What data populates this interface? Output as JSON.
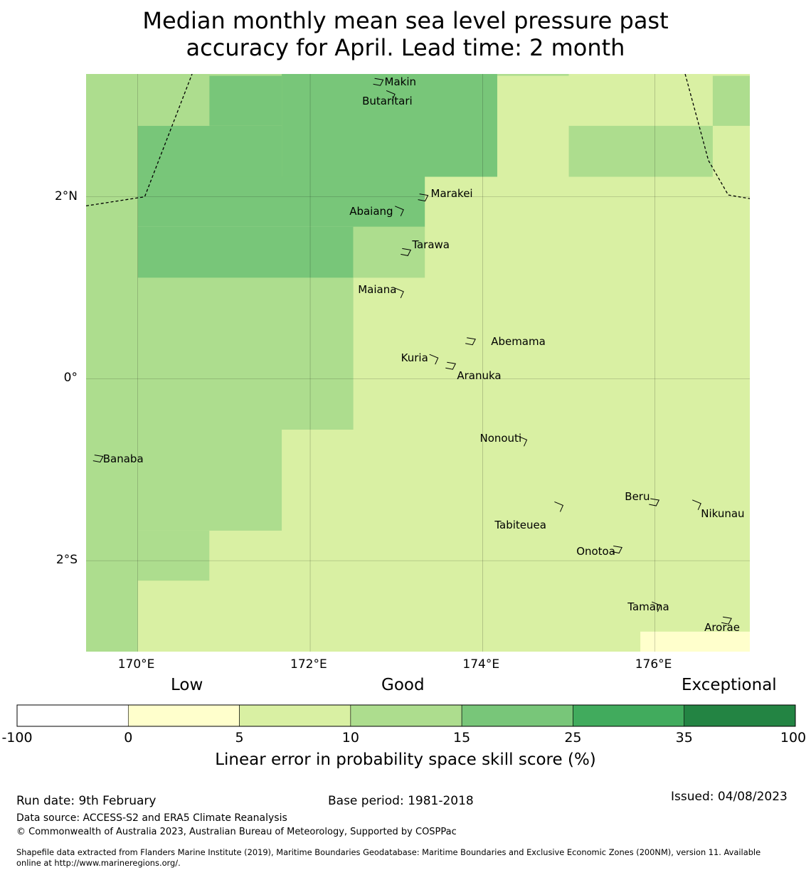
{
  "title": {
    "line1": "Median monthly mean sea level pressure past",
    "line2": "accuracy for April. Lead time: 2 month"
  },
  "map": {
    "lon_range": [
      169.4,
      177.1
    ],
    "lat_range": [
      -3.0,
      3.35
    ],
    "lon_ticks": [
      {
        "value": 170,
        "label": "170°E"
      },
      {
        "value": 172,
        "label": "172°E"
      },
      {
        "value": 174,
        "label": "174°E"
      },
      {
        "value": 176,
        "label": "176°E"
      }
    ],
    "lat_ticks": [
      {
        "value": 2,
        "label": "2°N"
      },
      {
        "value": 0,
        "label": "0°"
      },
      {
        "value": -2,
        "label": "2°S"
      }
    ],
    "category_colors": {
      "c0": "#ffffcc",
      "c1": "#d9f0a3",
      "c2": "#addd8e",
      "c3": "#78c679",
      "c4": "#41ab5d",
      "c5": "#238443"
    },
    "grid_cells": [
      {
        "lon": [
          169.4,
          170.0
        ],
        "lat": [
          -3.0,
          3.35
        ],
        "cat": "c2"
      },
      {
        "lon": [
          170.0,
          170.83
        ],
        "lat": [
          2.78,
          3.35
        ],
        "cat": "c2"
      },
      {
        "lon": [
          170.83,
          171.67
        ],
        "lat": [
          3.33,
          3.35
        ],
        "cat": "c2"
      },
      {
        "lon": [
          170.0,
          171.67
        ],
        "lat": [
          3.33,
          3.35
        ],
        "cat": "c2"
      },
      {
        "lon": [
          170.83,
          171.67
        ],
        "lat": [
          2.78,
          3.33
        ],
        "cat": "c3"
      },
      {
        "lon": [
          171.67,
          174.17
        ],
        "lat": [
          2.22,
          3.35
        ],
        "cat": "c3"
      },
      {
        "lon": [
          170.0,
          171.67
        ],
        "lat": [
          2.22,
          2.78
        ],
        "cat": "c3"
      },
      {
        "lon": [
          170.0,
          173.33
        ],
        "lat": [
          1.67,
          2.22
        ],
        "cat": "c3"
      },
      {
        "lon": [
          170.0,
          172.5
        ],
        "lat": [
          1.11,
          1.67
        ],
        "cat": "c3"
      },
      {
        "lon": [
          172.5,
          173.33
        ],
        "lat": [
          1.11,
          1.67
        ],
        "cat": "c2"
      },
      {
        "lon": [
          174.17,
          175.0
        ],
        "lat": [
          3.33,
          3.35
        ],
        "cat": "c2"
      },
      {
        "lon": [
          175.0,
          176.67
        ],
        "lat": [
          2.22,
          2.78
        ],
        "cat": "c2"
      },
      {
        "lon": [
          176.67,
          177.1
        ],
        "lat": [
          2.78,
          3.33
        ],
        "cat": "c2"
      },
      {
        "lon": [
          170.0,
          172.5
        ],
        "lat": [
          -0.56,
          1.11
        ],
        "cat": "c2"
      },
      {
        "lon": [
          170.0,
          171.67
        ],
        "lat": [
          -1.67,
          -0.56
        ],
        "cat": "c2"
      },
      {
        "lon": [
          170.0,
          170.83
        ],
        "lat": [
          -2.22,
          -1.67
        ],
        "cat": "c2"
      },
      {
        "lon": [
          175.83,
          177.1
        ],
        "lat": [
          -3.0,
          -2.78
        ],
        "cat": "c0"
      }
    ],
    "eez_boundaries": [
      {
        "lons": [
          169.4,
          170.08,
          170.63
        ],
        "lats": [
          1.9,
          2.0,
          3.35
        ]
      },
      {
        "lons": [
          176.35,
          176.62,
          176.85,
          177.1
        ],
        "lats": [
          3.35,
          2.4,
          2.02,
          1.98
        ]
      }
    ],
    "islands": [
      {
        "name": "Makin",
        "lon": 172.78,
        "lat": 3.27,
        "label_dx": 10,
        "label_dy": -8
      },
      {
        "name": "Butaritari",
        "lon": 172.9,
        "lat": 3.12,
        "label_dx": -36,
        "label_dy": 0
      },
      {
        "name": "Marakei",
        "lon": 173.3,
        "lat": 2.0,
        "label_dx": 12,
        "label_dy": -14
      },
      {
        "name": "Abaiang",
        "lon": 173.0,
        "lat": 1.85,
        "label_dx": -66,
        "label_dy": -8
      },
      {
        "name": "Tarawa",
        "lon": 173.1,
        "lat": 1.4,
        "label_dx": 10,
        "label_dy": -18
      },
      {
        "name": "Maiana",
        "lon": 173.0,
        "lat": 0.95,
        "label_dx": -54,
        "label_dy": -13
      },
      {
        "name": "Abemama",
        "lon": 173.85,
        "lat": 0.42,
        "label_dx": 30,
        "label_dy": -8
      },
      {
        "name": "Kuria",
        "lon": 173.4,
        "lat": 0.22,
        "label_dx": -42,
        "label_dy": -10
      },
      {
        "name": "Aranuka",
        "lon": 173.62,
        "lat": 0.15,
        "label_dx": 10,
        "label_dy": 6
      },
      {
        "name": "Nonouti",
        "lon": 174.43,
        "lat": -0.68,
        "label_dx": -56,
        "label_dy": -12
      },
      {
        "name": "Banaba",
        "lon": 169.53,
        "lat": -0.87,
        "label_dx": 8,
        "label_dy": -8
      },
      {
        "name": "Tabiteuea",
        "lon": 174.85,
        "lat": -1.4,
        "label_dx": -86,
        "label_dy": 18
      },
      {
        "name": "Beru",
        "lon": 175.98,
        "lat": -1.35,
        "label_dx": -40,
        "label_dy": -16
      },
      {
        "name": "Nikunau",
        "lon": 176.45,
        "lat": -1.38,
        "label_dx": 10,
        "label_dy": 4
      },
      {
        "name": "Onotoa",
        "lon": 175.55,
        "lat": -1.87,
        "label_dx": -56,
        "label_dy": -6
      },
      {
        "name": "Tamana",
        "lon": 175.98,
        "lat": -2.5,
        "label_dx": -36,
        "label_dy": -8
      },
      {
        "name": "Arorae",
        "lon": 176.82,
        "lat": -2.65,
        "label_dx": -30,
        "label_dy": 2
      }
    ]
  },
  "categories": {
    "low": "Low",
    "good": "Good",
    "exceptional": "Exceptional"
  },
  "colorbar": {
    "bins": [
      {
        "from": "-100",
        "to": "0",
        "color": "#ffffff"
      },
      {
        "from": "0",
        "to": "5",
        "color": "#ffffcc"
      },
      {
        "from": "5",
        "to": "10",
        "color": "#d9f0a3"
      },
      {
        "from": "10",
        "to": "15",
        "color": "#addd8e"
      },
      {
        "from": "15",
        "to": "25",
        "color": "#78c679"
      },
      {
        "from": "25",
        "to": "35",
        "color": "#41ab5d"
      },
      {
        "from": "35",
        "to": "100",
        "color": "#238443"
      }
    ],
    "tick_labels": [
      "-100",
      "0",
      "5",
      "10",
      "15",
      "25",
      "35",
      "100"
    ],
    "label": "Linear error in probability space skill score (%)"
  },
  "footer": {
    "run_date": "Run date: 9th February",
    "base_period": "Base period: 1981-2018",
    "issued": "Issued: 04/08/2023",
    "data_source": "Data source: ACCESS-S2 and ERA5 Climate Reanalysis",
    "copyright": "© Commonwealth of Australia 2023, Australian Bureau of Meteorology, Supported by COSPPac",
    "shapefile_line1": "Shapefile data extracted from Flanders Marine Institute (2019), Maritime Boundaries Geodatabase: Maritime Boundaries and Exclusive Economic Zones (200NM), version 11. Available",
    "shapefile_line2": "online at http://www.marineregions.org/."
  }
}
